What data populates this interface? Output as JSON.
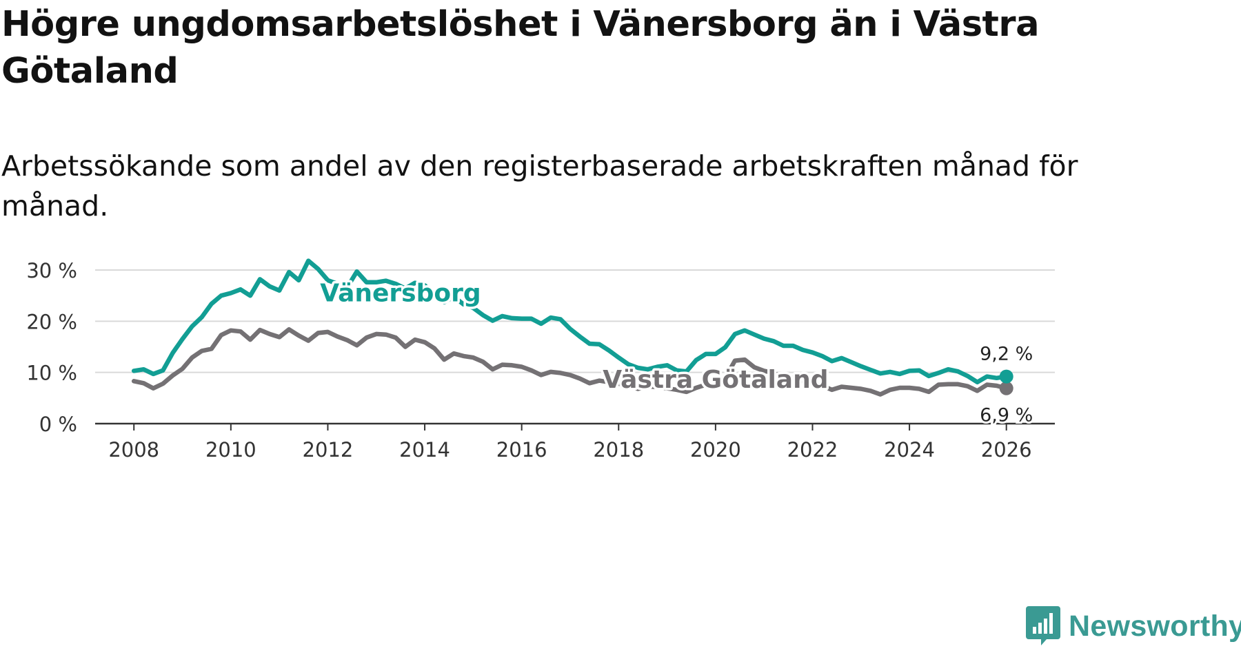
{
  "header": {
    "title": "Högre ungdomsarbetslöshet i Vänersborg än i Västra Götaland",
    "subtitle": "Arbetssökande som andel av den registerbaserade arbetskraften månad för månad."
  },
  "brand": {
    "name": "Newsworthy",
    "color": "#3a9a93"
  },
  "chart_data": {
    "type": "line",
    "title": "Högre ungdomsarbetslöshet i Vänersborg än i Västra Götaland",
    "subtitle": "Arbetssökande som andel av den registerbaserade arbetskraften månad för månad.",
    "xlabel": "",
    "ylabel": "",
    "xlim": [
      2007.2,
      2027.0
    ],
    "ylim": [
      0,
      30
    ],
    "grid": true,
    "x_ticks": [
      2008,
      2010,
      2012,
      2014,
      2016,
      2018,
      2020,
      2022,
      2024,
      2026
    ],
    "x_tick_labels": [
      "2008",
      "2010",
      "2012",
      "2014",
      "2016",
      "2018",
      "2020",
      "2022",
      "2024",
      "2026"
    ],
    "y_ticks": [
      0,
      10,
      20,
      30
    ],
    "y_tick_labels": [
      "0 %",
      "10 %",
      "20 %",
      "30 %"
    ],
    "series": [
      {
        "name": "Västra Götaland",
        "color": "#747174",
        "end_label": "6,9 %",
        "points": [
          [
            2008.0,
            8.3
          ],
          [
            2008.2,
            7.9
          ],
          [
            2008.4,
            6.9
          ],
          [
            2008.6,
            7.8
          ],
          [
            2008.8,
            9.4
          ],
          [
            2009.0,
            10.7
          ],
          [
            2009.2,
            12.9
          ],
          [
            2009.4,
            14.2
          ],
          [
            2009.6,
            14.6
          ],
          [
            2009.8,
            17.3
          ],
          [
            2010.0,
            18.2
          ],
          [
            2010.2,
            18.0
          ],
          [
            2010.4,
            16.4
          ],
          [
            2010.6,
            18.3
          ],
          [
            2010.8,
            17.5
          ],
          [
            2011.0,
            16.9
          ],
          [
            2011.2,
            18.4
          ],
          [
            2011.4,
            17.2
          ],
          [
            2011.6,
            16.2
          ],
          [
            2011.8,
            17.7
          ],
          [
            2012.0,
            17.9
          ],
          [
            2012.2,
            17.0
          ],
          [
            2012.4,
            16.3
          ],
          [
            2012.6,
            15.3
          ],
          [
            2012.8,
            16.8
          ],
          [
            2013.0,
            17.5
          ],
          [
            2013.2,
            17.4
          ],
          [
            2013.4,
            16.8
          ],
          [
            2013.6,
            15.0
          ],
          [
            2013.8,
            16.4
          ],
          [
            2014.0,
            15.9
          ],
          [
            2014.2,
            14.7
          ],
          [
            2014.4,
            12.5
          ],
          [
            2014.6,
            13.7
          ],
          [
            2014.8,
            13.2
          ],
          [
            2015.0,
            12.9
          ],
          [
            2015.2,
            12.1
          ],
          [
            2015.4,
            10.6
          ],
          [
            2015.6,
            11.5
          ],
          [
            2015.8,
            11.4
          ],
          [
            2016.0,
            11.1
          ],
          [
            2016.2,
            10.4
          ],
          [
            2016.4,
            9.5
          ],
          [
            2016.6,
            10.1
          ],
          [
            2016.8,
            9.9
          ],
          [
            2017.0,
            9.5
          ],
          [
            2017.2,
            8.8
          ],
          [
            2017.4,
            7.9
          ],
          [
            2017.6,
            8.4
          ],
          [
            2017.8,
            8.1
          ],
          [
            2018.0,
            7.8
          ],
          [
            2018.2,
            7.4
          ],
          [
            2018.4,
            6.8
          ],
          [
            2018.6,
            7.3
          ],
          [
            2018.8,
            7.1
          ],
          [
            2019.0,
            6.9
          ],
          [
            2019.2,
            6.6
          ],
          [
            2019.4,
            6.2
          ],
          [
            2019.6,
            7.0
          ],
          [
            2019.8,
            7.6
          ],
          [
            2020.0,
            8.0
          ],
          [
            2020.2,
            8.9
          ],
          [
            2020.4,
            12.3
          ],
          [
            2020.6,
            12.5
          ],
          [
            2020.8,
            11.0
          ],
          [
            2021.0,
            10.3
          ],
          [
            2021.2,
            9.9
          ],
          [
            2021.4,
            9.0
          ],
          [
            2021.6,
            8.9
          ],
          [
            2021.8,
            8.3
          ],
          [
            2022.0,
            7.9
          ],
          [
            2022.2,
            7.4
          ],
          [
            2022.4,
            6.6
          ],
          [
            2022.6,
            7.2
          ],
          [
            2022.8,
            7.0
          ],
          [
            2023.0,
            6.8
          ],
          [
            2023.2,
            6.4
          ],
          [
            2023.4,
            5.7
          ],
          [
            2023.6,
            6.6
          ],
          [
            2023.8,
            7.0
          ],
          [
            2024.0,
            7.0
          ],
          [
            2024.2,
            6.8
          ],
          [
            2024.4,
            6.2
          ],
          [
            2024.6,
            7.6
          ],
          [
            2024.8,
            7.7
          ],
          [
            2025.0,
            7.7
          ],
          [
            2025.2,
            7.3
          ],
          [
            2025.4,
            6.4
          ],
          [
            2025.6,
            7.6
          ],
          [
            2025.8,
            7.4
          ],
          [
            2026.0,
            6.9
          ]
        ]
      },
      {
        "name": "Vänersborg",
        "color": "#129e94",
        "end_label": "9,2 %",
        "points": [
          [
            2008.0,
            10.3
          ],
          [
            2008.2,
            10.6
          ],
          [
            2008.4,
            9.7
          ],
          [
            2008.6,
            10.4
          ],
          [
            2008.8,
            13.8
          ],
          [
            2009.0,
            16.5
          ],
          [
            2009.2,
            19.0
          ],
          [
            2009.4,
            20.8
          ],
          [
            2009.6,
            23.4
          ],
          [
            2009.8,
            25.0
          ],
          [
            2010.0,
            25.5
          ],
          [
            2010.2,
            26.2
          ],
          [
            2010.4,
            25.0
          ],
          [
            2010.6,
            28.2
          ],
          [
            2010.8,
            26.8
          ],
          [
            2011.0,
            26.0
          ],
          [
            2011.2,
            29.6
          ],
          [
            2011.4,
            28.0
          ],
          [
            2011.6,
            31.8
          ],
          [
            2011.8,
            30.2
          ],
          [
            2012.0,
            28.0
          ],
          [
            2012.2,
            27.3
          ],
          [
            2012.4,
            26.6
          ],
          [
            2012.6,
            29.7
          ],
          [
            2012.8,
            27.6
          ],
          [
            2013.0,
            27.6
          ],
          [
            2013.2,
            27.9
          ],
          [
            2013.4,
            27.3
          ],
          [
            2013.6,
            26.4
          ],
          [
            2013.8,
            27.5
          ],
          [
            2014.0,
            27.0
          ],
          [
            2014.2,
            25.1
          ],
          [
            2014.4,
            23.7
          ],
          [
            2014.6,
            24.8
          ],
          [
            2014.8,
            23.3
          ],
          [
            2015.0,
            22.6
          ],
          [
            2015.2,
            21.2
          ],
          [
            2015.4,
            20.1
          ],
          [
            2015.6,
            21.0
          ],
          [
            2015.8,
            20.6
          ],
          [
            2016.0,
            20.5
          ],
          [
            2016.2,
            20.5
          ],
          [
            2016.4,
            19.5
          ],
          [
            2016.6,
            20.7
          ],
          [
            2016.8,
            20.4
          ],
          [
            2017.0,
            18.5
          ],
          [
            2017.2,
            17.0
          ],
          [
            2017.4,
            15.6
          ],
          [
            2017.6,
            15.5
          ],
          [
            2017.8,
            14.3
          ],
          [
            2018.0,
            12.9
          ],
          [
            2018.2,
            11.6
          ],
          [
            2018.4,
            10.9
          ],
          [
            2018.6,
            10.6
          ],
          [
            2018.8,
            11.1
          ],
          [
            2019.0,
            11.4
          ],
          [
            2019.2,
            10.4
          ],
          [
            2019.4,
            10.2
          ],
          [
            2019.6,
            12.4
          ],
          [
            2019.8,
            13.6
          ],
          [
            2020.0,
            13.6
          ],
          [
            2020.2,
            14.9
          ],
          [
            2020.4,
            17.5
          ],
          [
            2020.6,
            18.2
          ],
          [
            2020.8,
            17.4
          ],
          [
            2021.0,
            16.6
          ],
          [
            2021.2,
            16.1
          ],
          [
            2021.4,
            15.2
          ],
          [
            2021.6,
            15.2
          ],
          [
            2021.8,
            14.4
          ],
          [
            2022.0,
            13.9
          ],
          [
            2022.2,
            13.2
          ],
          [
            2022.4,
            12.2
          ],
          [
            2022.6,
            12.8
          ],
          [
            2022.8,
            12.0
          ],
          [
            2023.0,
            11.2
          ],
          [
            2023.2,
            10.5
          ],
          [
            2023.4,
            9.8
          ],
          [
            2023.6,
            10.1
          ],
          [
            2023.8,
            9.7
          ],
          [
            2024.0,
            10.3
          ],
          [
            2024.2,
            10.4
          ],
          [
            2024.4,
            9.3
          ],
          [
            2024.6,
            9.9
          ],
          [
            2024.8,
            10.6
          ],
          [
            2025.0,
            10.2
          ],
          [
            2025.2,
            9.3
          ],
          [
            2025.4,
            8.1
          ],
          [
            2025.6,
            9.2
          ],
          [
            2025.8,
            8.9
          ],
          [
            2026.0,
            9.2
          ]
        ]
      }
    ],
    "annotations": [
      {
        "text": "Vänersborg",
        "series": "Vänersborg",
        "x": 2013.5,
        "y": 25.5
      },
      {
        "text": "Västra Götaland",
        "series": "Västra Götaland",
        "x": 2020.0,
        "y": 8.6
      }
    ]
  }
}
